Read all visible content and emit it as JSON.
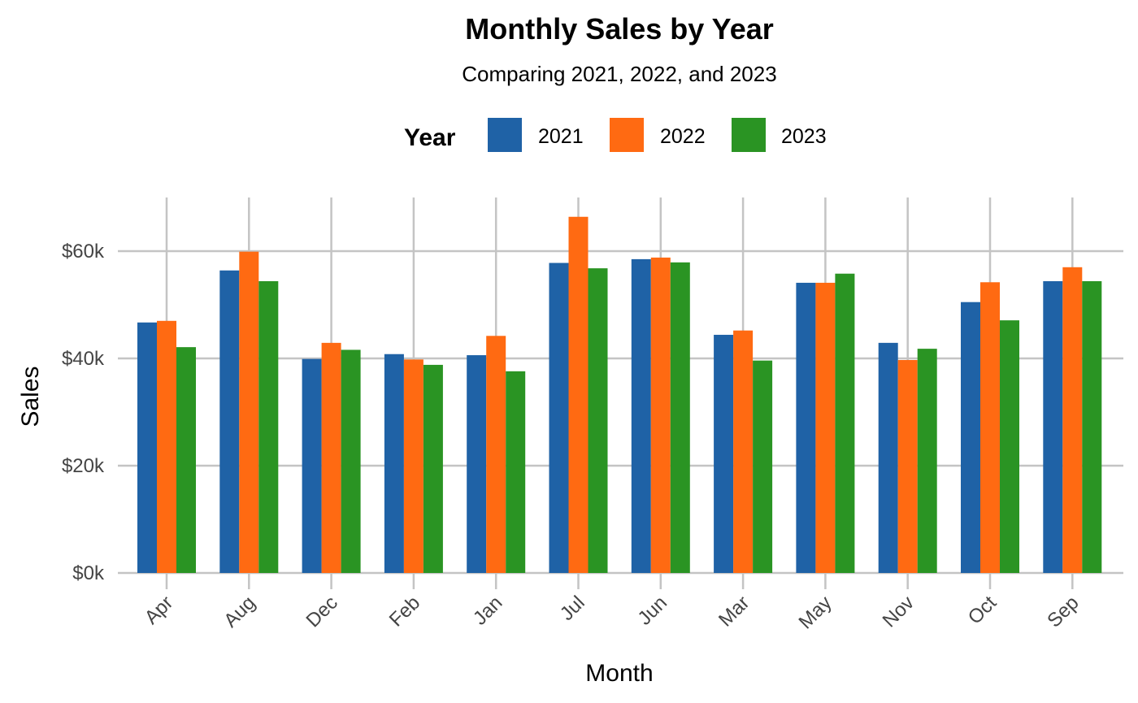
{
  "chart_data": {
    "type": "bar",
    "title": "Monthly Sales by Year",
    "subtitle": "Comparing 2021, 2022, and 2023",
    "xlabel": "Month",
    "ylabel": "Sales",
    "legend_title": "Year",
    "legend_position": "top",
    "grid": true,
    "ylim": [
      0,
      70000
    ],
    "yticks": [
      0,
      20000,
      40000,
      60000
    ],
    "ytick_labels": [
      "$0k",
      "$20k",
      "$40k",
      "$60k"
    ],
    "categories": [
      "Apr",
      "Aug",
      "Dec",
      "Feb",
      "Jan",
      "Jul",
      "Jun",
      "Mar",
      "May",
      "Nov",
      "Oct",
      "Sep"
    ],
    "series": [
      {
        "name": "2021",
        "color": "#1f62a6",
        "values": [
          46700,
          56400,
          39900,
          40800,
          40600,
          57800,
          58500,
          44400,
          54100,
          42900,
          50500,
          54400
        ]
      },
      {
        "name": "2022",
        "color": "#ff6a12",
        "values": [
          47000,
          59900,
          42900,
          39800,
          44200,
          66400,
          58800,
          45200,
          54100,
          39700,
          54200,
          57000
        ]
      },
      {
        "name": "2023",
        "color": "#2a9423",
        "values": [
          42100,
          54400,
          41600,
          38800,
          37600,
          56800,
          57900,
          39600,
          55800,
          41800,
          47100,
          54400
        ]
      }
    ]
  }
}
